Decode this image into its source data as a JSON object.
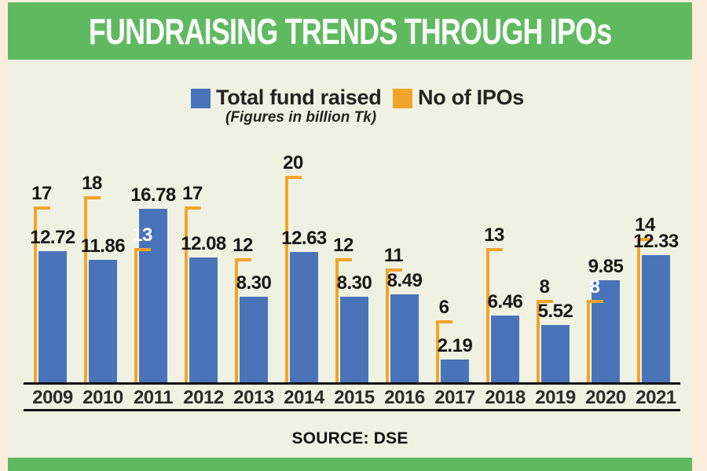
{
  "header": {
    "title": "FUNDRAISING TRENDS THROUGH IPOs"
  },
  "legend": {
    "fund_label": "Total fund raised",
    "fund_note": "(Figures in billion Tk)",
    "ipo_label": "No of IPOs"
  },
  "footer": {
    "source": "SOURCE: DSE"
  },
  "colors": {
    "fund_bar_blue": "#4a74b9",
    "ipo_marker_orange": "#f2a42a",
    "banner_green": "#5fba5f",
    "chart_background": "#eff2e2",
    "outer_background": "#fcecdb",
    "label_dark": "#181816",
    "label_on_bar": "#ffffff"
  },
  "chart_data": {
    "type": "bar",
    "title": "FUNDRAISING TRENDS THROUGH IPOs",
    "subtitle": "(Figures in billion Tk)",
    "categories": [
      "2009",
      "2010",
      "2011",
      "2012",
      "2013",
      "2014",
      "2015",
      "2016",
      "2017",
      "2018",
      "2019",
      "2020",
      "2021"
    ],
    "series": [
      {
        "name": "Total fund raised",
        "unit": "billion Tk",
        "values": [
          12.72,
          11.86,
          16.78,
          12.08,
          8.3,
          12.63,
          8.3,
          8.49,
          2.19,
          6.46,
          5.52,
          9.85,
          12.33
        ]
      },
      {
        "name": "No of IPOs",
        "values": [
          17,
          18,
          13,
          17,
          12,
          20,
          12,
          11,
          6,
          13,
          8,
          8,
          14
        ]
      }
    ],
    "ylim": [
      0,
      20
    ],
    "grid": false,
    "legend_position": "top",
    "value_labels": "shown",
    "source": "SOURCE: DSE"
  }
}
